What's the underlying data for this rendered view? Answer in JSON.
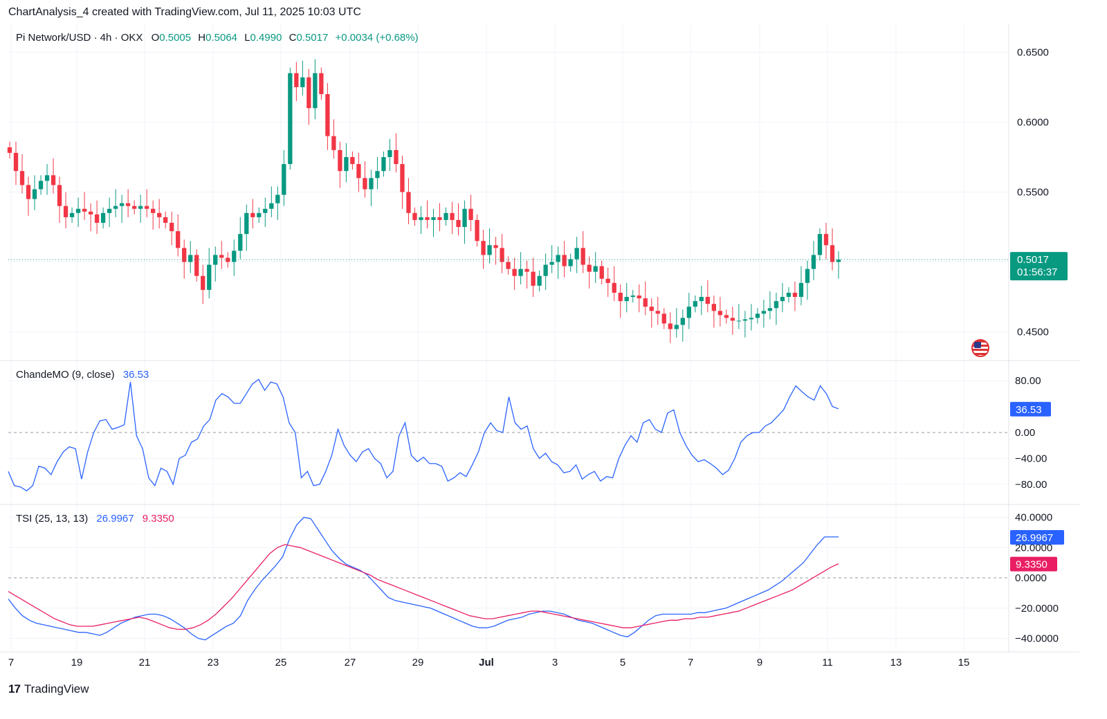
{
  "header": "ChartAnalysis_4 created with TradingView.com, Jul 11, 2025 10:03 UTC",
  "legend": {
    "symbol": "Pi Network/USD · 4h · OKX",
    "o_label": "O",
    "o": "0.5005",
    "h_label": "H",
    "h": "0.5064",
    "l_label": "L",
    "l": "0.4990",
    "c_label": "C",
    "c": "0.5017",
    "change": "+0.0034 (+0.68%)"
  },
  "price_badge": {
    "price": "0.5017",
    "countdown": "01:56:37"
  },
  "chande": {
    "label": "ChandeMO (9, close)",
    "value": "36.53"
  },
  "tsi": {
    "label": "TSI (25, 13, 13)",
    "value": "26.9967",
    "signal": "9.3350"
  },
  "footer": {
    "brand": "TradingView"
  },
  "colors": {
    "up": "#089981",
    "down": "#f23645",
    "cmo": "#2962ff",
    "tsi": "#2962ff",
    "signal": "#e91e63",
    "grid": "#f0f3fa"
  },
  "chart_data": [
    {
      "type": "candlestick",
      "title": "Pi Network/USD · 4h · OKX",
      "y_ticks": [
        "0.6500",
        "0.6000",
        "0.5500",
        "0.4500"
      ],
      "ylim": [
        0.43,
        0.67
      ],
      "x_ticks": [
        "7",
        "19",
        "21",
        "23",
        "25",
        "27",
        "29",
        "Jul",
        "3",
        "5",
        "7",
        "9",
        "11",
        "13",
        "15"
      ],
      "close_series": [
        0.578,
        0.565,
        0.555,
        0.545,
        0.552,
        0.558,
        0.562,
        0.555,
        0.54,
        0.532,
        0.535,
        0.538,
        0.536,
        0.534,
        0.528,
        0.535,
        0.538,
        0.54,
        0.542,
        0.54,
        0.538,
        0.54,
        0.538,
        0.535,
        0.532,
        0.528,
        0.522,
        0.51,
        0.5,
        0.505,
        0.49,
        0.48,
        0.498,
        0.505,
        0.503,
        0.5,
        0.508,
        0.52,
        0.535,
        0.532,
        0.535,
        0.538,
        0.542,
        0.548,
        0.57,
        0.635,
        0.625,
        0.632,
        0.61,
        0.635,
        0.62,
        0.59,
        0.58,
        0.565,
        0.575,
        0.57,
        0.56,
        0.552,
        0.56,
        0.565,
        0.575,
        0.58,
        0.57,
        0.55,
        0.535,
        0.53,
        0.532,
        0.53,
        0.532,
        0.53,
        0.535,
        0.53,
        0.525,
        0.538,
        0.53,
        0.515,
        0.505,
        0.512,
        0.51,
        0.5,
        0.495,
        0.49,
        0.495,
        0.493,
        0.483,
        0.49,
        0.498,
        0.5,
        0.505,
        0.497,
        0.502,
        0.51,
        0.498,
        0.493,
        0.497,
        0.488,
        0.485,
        0.478,
        0.472,
        0.475,
        0.476,
        0.474,
        0.468,
        0.465,
        0.463,
        0.456,
        0.452,
        0.455,
        0.46,
        0.468,
        0.472,
        0.475,
        0.47,
        0.465,
        0.462,
        0.46,
        0.458,
        0.458,
        0.459,
        0.46,
        0.463,
        0.465,
        0.467,
        0.472,
        0.475,
        0.478,
        0.475,
        0.485,
        0.495,
        0.505,
        0.52,
        0.512,
        0.5,
        0.5017
      ],
      "last": 0.5017
    },
    {
      "type": "line",
      "title": "ChandeMO (9, close)",
      "y_ticks": [
        "80.00",
        "0.00",
        "−40.00",
        "−80.00"
      ],
      "ylim": [
        -110,
        110
      ],
      "series": [
        {
          "name": "ChandeMO (9, close)",
          "values": [
            -60,
            -82,
            -84,
            -90,
            -82,
            -52,
            -55,
            -65,
            -45,
            -30,
            -22,
            -25,
            -72,
            -30,
            0,
            18,
            20,
            5,
            8,
            12,
            78,
            -5,
            -25,
            -70,
            -82,
            -55,
            -60,
            -80,
            -40,
            -35,
            -15,
            -10,
            10,
            20,
            50,
            60,
            55,
            45,
            45,
            60,
            75,
            82,
            65,
            78,
            75,
            55,
            15,
            0,
            -70,
            -60,
            -82,
            -80,
            -60,
            -35,
            5,
            -20,
            -35,
            -45,
            -30,
            -25,
            -40,
            -48,
            -70,
            -60,
            -5,
            15,
            -35,
            -45,
            -38,
            -48,
            -48,
            -52,
            -75,
            -70,
            -62,
            -68,
            -50,
            -30,
            0,
            15,
            3,
            0,
            55,
            15,
            5,
            10,
            -25,
            -40,
            -32,
            -45,
            -50,
            -62,
            -60,
            -50,
            -72,
            -65,
            -60,
            -75,
            -68,
            -70,
            -40,
            -20,
            -5,
            -15,
            15,
            20,
            5,
            0,
            30,
            35,
            0,
            -20,
            -35,
            -45,
            -42,
            -48,
            -55,
            -65,
            -58,
            -40,
            -15,
            -5,
            0,
            0,
            10,
            15,
            25,
            35,
            55,
            72,
            63,
            55,
            50,
            72,
            60,
            40,
            36.53
          ]
        }
      ]
    },
    {
      "type": "line",
      "title": "TSI (25, 13, 13)",
      "y_ticks": [
        "40.0000",
        "20.0000",
        "0.0000",
        "−20.0000",
        "−40.0000"
      ],
      "ylim": [
        -48,
        48
      ],
      "series": [
        {
          "name": "TSI",
          "values": [
            -14,
            -20,
            -25,
            -28,
            -30,
            -31,
            -32,
            -33,
            -34,
            -35,
            -36,
            -36,
            -37,
            -38,
            -36,
            -33,
            -30,
            -28,
            -26,
            -25,
            -24,
            -24,
            -25,
            -27,
            -30,
            -33,
            -37,
            -40,
            -41,
            -38,
            -35,
            -32,
            -30,
            -25,
            -15,
            -8,
            -2,
            3,
            8,
            14,
            26,
            35,
            40,
            39,
            32,
            25,
            18,
            13,
            9,
            7,
            5,
            2,
            -3,
            -8,
            -13,
            -15,
            -16,
            -17,
            -18,
            -19,
            -20,
            -22,
            -24,
            -26,
            -28,
            -30,
            -32,
            -33,
            -33,
            -32,
            -30,
            -28,
            -27,
            -26,
            -24,
            -23,
            -22,
            -22,
            -23,
            -24,
            -26,
            -28,
            -29,
            -30,
            -32,
            -34,
            -36,
            -38,
            -39,
            -36,
            -32,
            -28,
            -25,
            -24,
            -24,
            -24,
            -24,
            -24,
            -23,
            -23,
            -22,
            -21,
            -20,
            -18,
            -16,
            -14,
            -12,
            -10,
            -8,
            -5,
            -2,
            2,
            6,
            10,
            16,
            22,
            27,
            27,
            26.9967
          ]
        },
        {
          "name": "Signal",
          "values": [
            -9,
            -12,
            -15,
            -18,
            -21,
            -24,
            -27,
            -29,
            -31,
            -32,
            -32,
            -32,
            -31,
            -30,
            -29,
            -28,
            -27,
            -26,
            -27,
            -29,
            -31,
            -33,
            -34,
            -34,
            -33,
            -31,
            -28,
            -24,
            -19,
            -14,
            -8,
            -2,
            4,
            10,
            16,
            20,
            22,
            21,
            20,
            18,
            16,
            14,
            12,
            10,
            8,
            6,
            4,
            2,
            -1,
            -3,
            -5,
            -7,
            -9,
            -11,
            -13,
            -15,
            -17,
            -19,
            -21,
            -23,
            -25,
            -26,
            -27,
            -27,
            -26,
            -25,
            -24,
            -23,
            -22,
            -22,
            -23,
            -24,
            -25,
            -26,
            -27,
            -28,
            -29,
            -30,
            -31,
            -32,
            -33,
            -33,
            -32,
            -31,
            -30,
            -29,
            -28,
            -28,
            -27,
            -27,
            -26,
            -26,
            -25,
            -24,
            -23,
            -22,
            -20,
            -18,
            -16,
            -14,
            -12,
            -10,
            -8,
            -5,
            -2,
            1,
            4,
            7,
            9.335
          ]
        }
      ]
    }
  ]
}
